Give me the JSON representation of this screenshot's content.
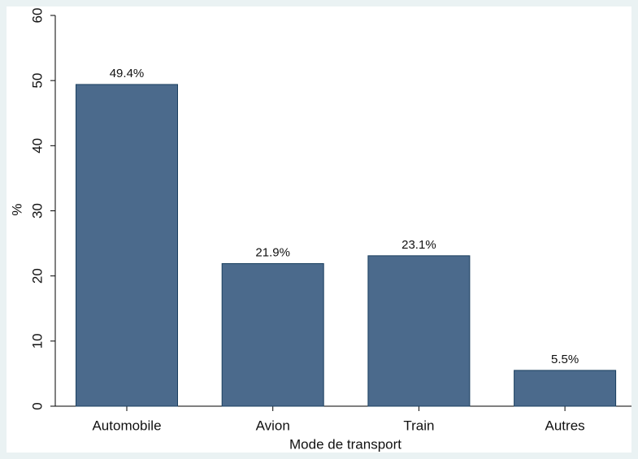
{
  "chart_data": {
    "type": "bar",
    "categories": [
      "Automobile",
      "Avion",
      "Train",
      "Autres"
    ],
    "values": [
      49.4,
      21.9,
      23.1,
      5.5
    ],
    "value_labels": [
      "49.4%",
      "21.9%",
      "23.1%",
      "5.5%"
    ],
    "color": "#4b6a8c",
    "ylabel": "%",
    "xlabel": "Mode de transport",
    "ylim": [
      0,
      60
    ],
    "yticks": [
      0,
      10,
      20,
      30,
      40,
      50,
      60
    ],
    "grid": false
  }
}
